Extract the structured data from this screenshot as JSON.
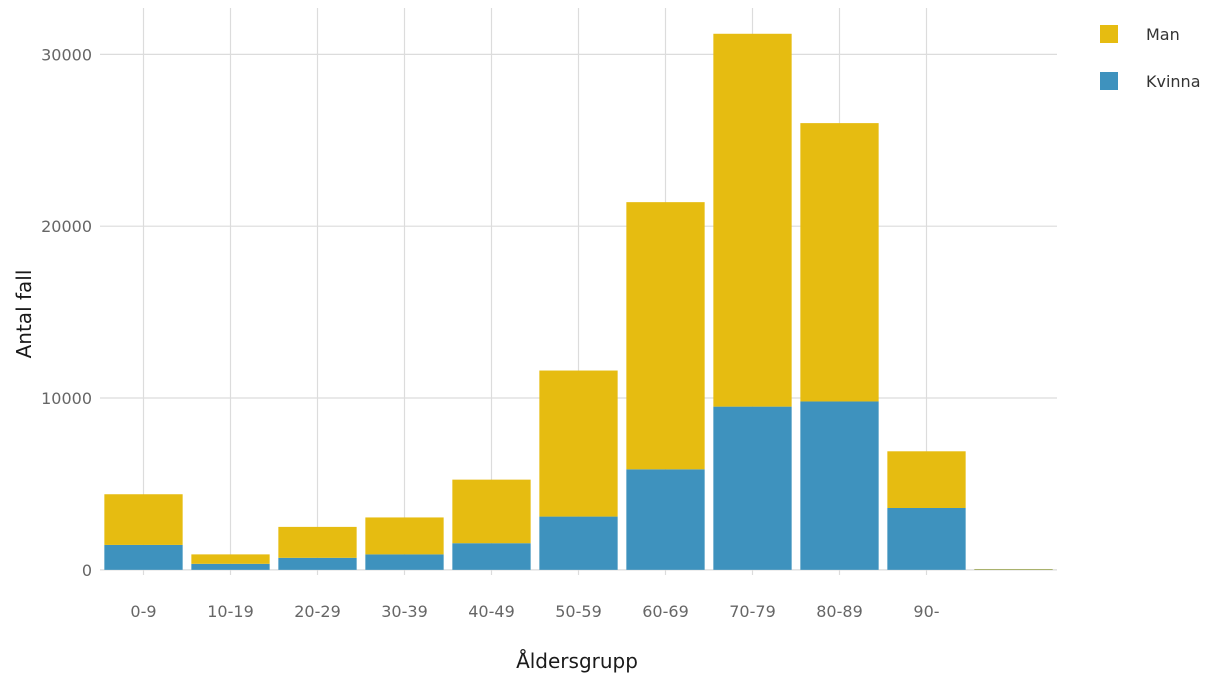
{
  "chart_data": {
    "type": "bar",
    "stacked": true,
    "xlabel": "Åldersgrupp",
    "ylabel": "Antal fall",
    "categories": [
      "0-9",
      "10-19",
      "20-29",
      "30-39",
      "40-49",
      "50-59",
      "60-69",
      "70-79",
      "80-89",
      "90-",
      ""
    ],
    "series": [
      {
        "name": "Kvinna",
        "color": "#3e92be",
        "values": [
          1450,
          350,
          700,
          900,
          1550,
          3100,
          5850,
          9500,
          9800,
          3600,
          30
        ]
      },
      {
        "name": "Man",
        "color": "#e6bc11",
        "values": [
          2950,
          550,
          1800,
          2150,
          3700,
          8500,
          15550,
          21700,
          16200,
          3300,
          20
        ]
      }
    ],
    "yticks": [
      0,
      10000,
      20000,
      30000
    ],
    "ylim": [
      -300,
      32700
    ],
    "grid": true,
    "legend": {
      "position": "top-right",
      "entries": [
        {
          "label": "Man",
          "color": "#e6bc11"
        },
        {
          "label": "Kvinna",
          "color": "#3e92be"
        }
      ]
    }
  }
}
